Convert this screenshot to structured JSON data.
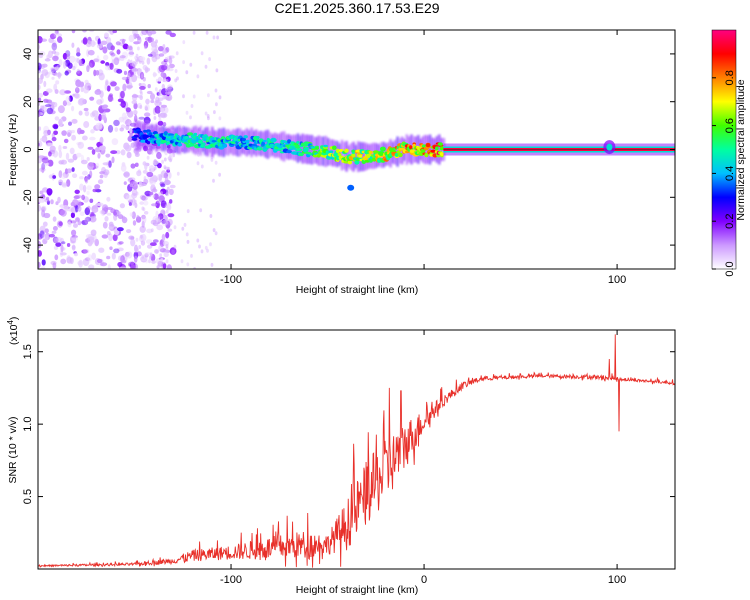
{
  "figure_title": "C2E1.2025.360.17.53.E29",
  "chart_data": [
    {
      "type": "heatmap",
      "title": "C2E1.2025.360.17.53.E29",
      "xlabel": "Height of straight line (km)",
      "ylabel": "Frequency (Hz)",
      "xlim": [
        -200,
        130
      ],
      "ylim": [
        -50,
        50
      ],
      "x_ticks": [
        -100,
        0,
        100
      ],
      "x_tick_labels": [
        "-100",
        "",
        "100"
      ],
      "y_ticks": [
        -40,
        -20,
        0,
        20,
        40
      ],
      "y_tick_labels": [
        "-40",
        "-20",
        "0",
        "20",
        "40"
      ],
      "colorbar": {
        "label": "Normalized spectral amplitude",
        "range": [
          0,
          1
        ],
        "ticks": [
          0.0,
          0.2,
          0.4,
          0.6,
          0.8
        ],
        "tick_labels": [
          "0.0",
          "0.2",
          "0.4",
          "0.6",
          "0.8"
        ],
        "colormap": [
          "#ffffff",
          "#cc99ff",
          "#8000ff",
          "#0000ff",
          "#00bfff",
          "#00ffa0",
          "#40ff00",
          "#ffff00",
          "#ff8000",
          "#ff0000",
          "#ff0080"
        ]
      },
      "noise_region_x": [
        -200,
        -140
      ],
      "ridge_points": [
        {
          "x": -150,
          "f": 6,
          "amp": 0.3
        },
        {
          "x": -140,
          "f": 5,
          "amp": 0.45
        },
        {
          "x": -130,
          "f": 4,
          "amp": 0.5
        },
        {
          "x": -120,
          "f": 4,
          "amp": 0.5
        },
        {
          "x": -110,
          "f": 3,
          "amp": 0.5
        },
        {
          "x": -100,
          "f": 3,
          "amp": 0.5
        },
        {
          "x": -90,
          "f": 3,
          "amp": 0.5
        },
        {
          "x": -80,
          "f": 2,
          "amp": 0.5
        },
        {
          "x": -70,
          "f": 1,
          "amp": 0.5
        },
        {
          "x": -60,
          "f": 0,
          "amp": 0.55
        },
        {
          "x": -50,
          "f": -1,
          "amp": 0.65
        },
        {
          "x": -40,
          "f": -3,
          "amp": 0.7
        },
        {
          "x": -30,
          "f": -3,
          "amp": 0.7
        },
        {
          "x": -20,
          "f": -2,
          "amp": 0.75
        },
        {
          "x": -10,
          "f": 0,
          "amp": 0.8
        },
        {
          "x": 0,
          "f": 0,
          "amp": 0.85
        },
        {
          "x": 10,
          "f": 0,
          "amp": 0.9
        }
      ],
      "steady_line": {
        "x_start": 10,
        "x_end": 130,
        "f": 0,
        "amp": 0.95
      },
      "outlier_point": {
        "x": -38,
        "f": -16,
        "amp": 0.35
      },
      "feature_at": {
        "x": 96,
        "f": 1,
        "amp": 0.9
      }
    },
    {
      "type": "line",
      "xlabel": "Height of straight line (km)",
      "ylabel": "SNR (10 * v/v)",
      "exponent_label": "(x10",
      "exponent_power": "4",
      "exponent_close": ")",
      "xlim": [
        -200,
        130
      ],
      "ylim": [
        0,
        1.65
      ],
      "x_ticks": [
        -100,
        0,
        100
      ],
      "x_tick_labels": [
        "-100",
        "0",
        "100"
      ],
      "y_ticks": [
        0.5,
        1.0,
        1.5
      ],
      "y_tick_labels": [
        "0.5",
        "1.0",
        "1.5"
      ],
      "color": "#e8302a",
      "envelope": [
        {
          "x": -200,
          "base": 0.02,
          "amp": 0.01
        },
        {
          "x": -150,
          "base": 0.03,
          "amp": 0.02
        },
        {
          "x": -130,
          "base": 0.05,
          "amp": 0.04
        },
        {
          "x": -120,
          "base": 0.08,
          "amp": 0.08
        },
        {
          "x": -100,
          "base": 0.1,
          "amp": 0.1
        },
        {
          "x": -80,
          "base": 0.12,
          "amp": 0.16
        },
        {
          "x": -60,
          "base": 0.14,
          "amp": 0.2
        },
        {
          "x": -50,
          "base": 0.15,
          "amp": 0.14
        },
        {
          "x": -40,
          "base": 0.25,
          "amp": 0.35
        },
        {
          "x": -30,
          "base": 0.45,
          "amp": 0.45
        },
        {
          "x": -20,
          "base": 0.6,
          "amp": 0.45
        },
        {
          "x": -10,
          "base": 0.8,
          "amp": 0.35
        },
        {
          "x": 0,
          "base": 1.0,
          "amp": 0.15
        },
        {
          "x": 10,
          "base": 1.15,
          "amp": 0.08
        },
        {
          "x": 20,
          "base": 1.26,
          "amp": 0.05
        },
        {
          "x": 30,
          "base": 1.31,
          "amp": 0.03
        },
        {
          "x": 60,
          "base": 1.33,
          "amp": 0.02
        },
        {
          "x": 90,
          "base": 1.32,
          "amp": 0.03
        },
        {
          "x": 110,
          "base": 1.3,
          "amp": 0.02
        },
        {
          "x": 130,
          "base": 1.28,
          "amp": 0.02
        }
      ],
      "spikes": [
        {
          "x": -18,
          "y": 1.25
        },
        {
          "x": -12,
          "y": 1.23
        },
        {
          "x": -21,
          "y": 1.0
        },
        {
          "x": 99,
          "y": 1.62
        },
        {
          "x": 101,
          "y": 0.95
        },
        {
          "x": 96,
          "y": 1.45
        }
      ]
    }
  ]
}
